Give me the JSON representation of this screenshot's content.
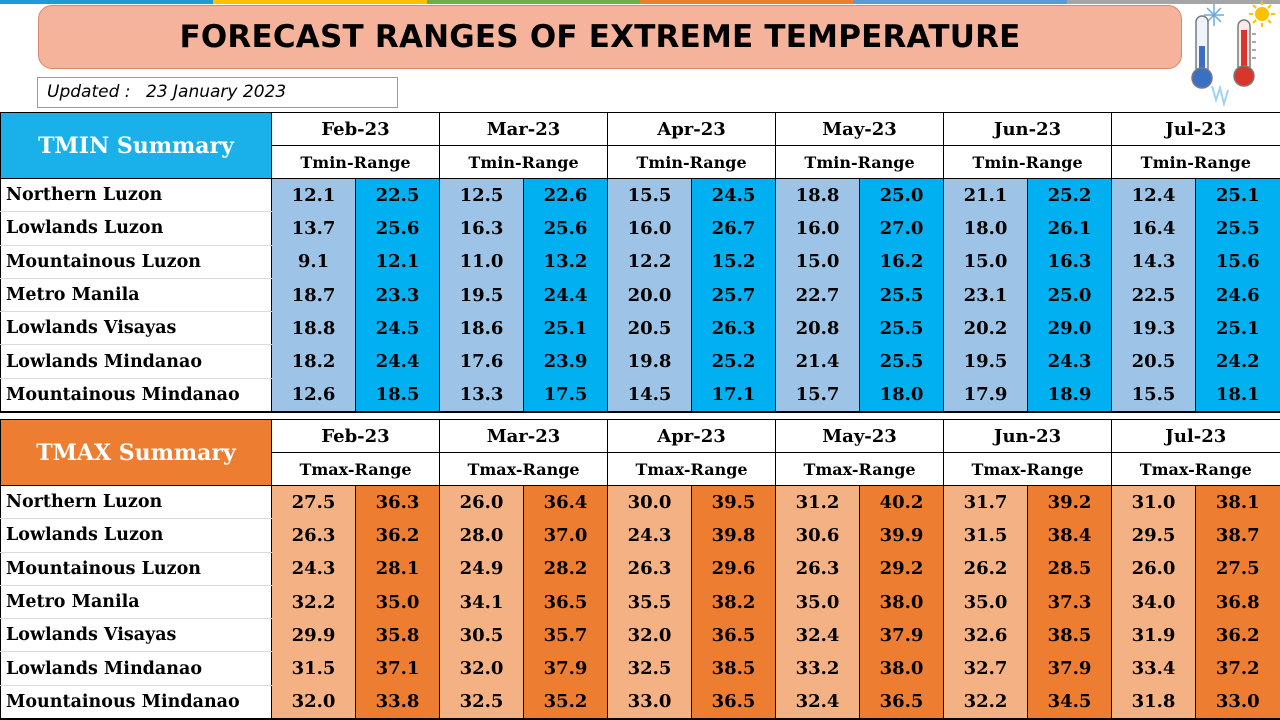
{
  "title": "FORECAST RANGES OF EXTREME TEMPERATURE",
  "updated": {
    "label": "Updated :",
    "date": "23 January 2023"
  },
  "icons": [
    "cold-thermometer-icon",
    "hot-thermometer-icon"
  ],
  "colors": {
    "tmin_header": "#1ab0ea",
    "tmin_low": "#9dc3e6",
    "tmin_high": "#00b0f0",
    "tmax_header": "#ed7d31",
    "tmax_low": "#f4b183",
    "tmax_high": "#ed7d31",
    "title_bg": "#f4b39a"
  },
  "months": [
    "Feb-23",
    "Mar-23",
    "Apr-23",
    "May-23",
    "Jun-23",
    "Jul-23"
  ],
  "tmin": {
    "heading": "TMIN Summary",
    "range_label": "Tmin-Range",
    "rows": [
      {
        "region": "Northern Luzon",
        "values": [
          "12.1",
          "22.5",
          "12.5",
          "22.6",
          "15.5",
          "24.5",
          "18.8",
          "25.0",
          "21.1",
          "25.2",
          "12.4",
          "25.1"
        ]
      },
      {
        "region": "Lowlands Luzon",
        "values": [
          "13.7",
          "25.6",
          "16.3",
          "25.6",
          "16.0",
          "26.7",
          "16.0",
          "27.0",
          "18.0",
          "26.1",
          "16.4",
          "25.5"
        ]
      },
      {
        "region": "Mountainous Luzon",
        "values": [
          "9.1",
          "12.1",
          "11.0",
          "13.2",
          "12.2",
          "15.2",
          "15.0",
          "16.2",
          "15.0",
          "16.3",
          "14.3",
          "15.6"
        ]
      },
      {
        "region": "Metro Manila",
        "values": [
          "18.7",
          "23.3",
          "19.5",
          "24.4",
          "20.0",
          "25.7",
          "22.7",
          "25.5",
          "23.1",
          "25.0",
          "22.5",
          "24.6"
        ]
      },
      {
        "region": "Lowlands Visayas",
        "values": [
          "18.8",
          "24.5",
          "18.6",
          "25.1",
          "20.5",
          "26.3",
          "20.8",
          "25.5",
          "20.2",
          "29.0",
          "19.3",
          "25.1"
        ]
      },
      {
        "region": "Lowlands Mindanao",
        "values": [
          "18.2",
          "24.4",
          "17.6",
          "23.9",
          "19.8",
          "25.2",
          "21.4",
          "25.5",
          "19.5",
          "24.3",
          "20.5",
          "24.2"
        ]
      },
      {
        "region": "Mountainous Mindanao",
        "values": [
          "12.6",
          "18.5",
          "13.3",
          "17.5",
          "14.5",
          "17.1",
          "15.7",
          "18.0",
          "17.9",
          "18.9",
          "15.5",
          "18.1"
        ]
      }
    ]
  },
  "tmax": {
    "heading": "TMAX Summary",
    "range_label": "Tmax-Range",
    "rows": [
      {
        "region": "Northern Luzon",
        "values": [
          "27.5",
          "36.3",
          "26.0",
          "36.4",
          "30.0",
          "39.5",
          "31.2",
          "40.2",
          "31.7",
          "39.2",
          "31.0",
          "38.1"
        ]
      },
      {
        "region": "Lowlands Luzon",
        "values": [
          "26.3",
          "36.2",
          "28.0",
          "37.0",
          "24.3",
          "39.8",
          "30.6",
          "39.9",
          "31.5",
          "38.4",
          "29.5",
          "38.7"
        ]
      },
      {
        "region": "Mountainous Luzon",
        "values": [
          "24.3",
          "28.1",
          "24.9",
          "28.2",
          "26.3",
          "29.6",
          "26.3",
          "29.2",
          "26.2",
          "28.5",
          "26.0",
          "27.5"
        ]
      },
      {
        "region": "Metro Manila",
        "values": [
          "32.2",
          "35.0",
          "34.1",
          "36.5",
          "35.5",
          "38.2",
          "35.0",
          "38.0",
          "35.0",
          "37.3",
          "34.0",
          "36.8"
        ]
      },
      {
        "region": "Lowlands Visayas",
        "values": [
          "29.9",
          "35.8",
          "30.5",
          "35.7",
          "32.0",
          "36.5",
          "32.4",
          "37.9",
          "32.6",
          "38.5",
          "31.9",
          "36.2"
        ]
      },
      {
        "region": "Lowlands Mindanao",
        "values": [
          "31.5",
          "37.1",
          "32.0",
          "37.9",
          "32.5",
          "38.5",
          "33.2",
          "38.0",
          "32.7",
          "37.9",
          "33.4",
          "37.2"
        ]
      },
      {
        "region": "Mountainous Mindanao",
        "values": [
          "32.0",
          "33.8",
          "32.5",
          "35.2",
          "33.0",
          "36.5",
          "32.4",
          "36.5",
          "32.2",
          "34.5",
          "31.8",
          "33.0"
        ]
      }
    ]
  }
}
